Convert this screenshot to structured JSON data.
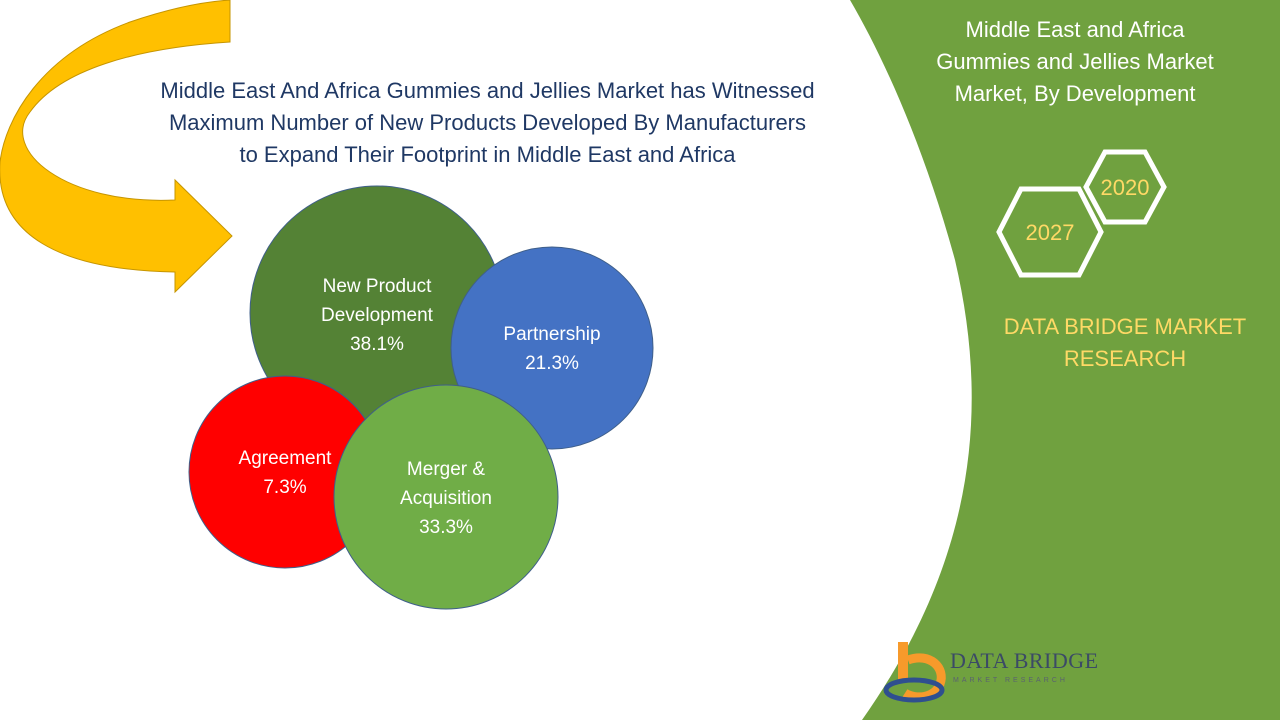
{
  "headline_lines": [
    "Middle East And Africa Gummies and Jellies Market has Witnessed",
    "Maximum Number of New Products Developed By Manufacturers",
    "to Expand Their Footprint in Middle East and Africa"
  ],
  "side_panel": {
    "title_lines": [
      "Middle East and Africa",
      "Gummies and Jellies Market",
      "Market, By Development"
    ],
    "years": [
      "2020",
      "2027"
    ],
    "brand_lines": [
      "DATA BRIDGE MARKET",
      "RESEARCH"
    ]
  },
  "logo": {
    "name": "DATA BRIDGE",
    "sub": "MARKET RESEARCH"
  },
  "colors": {
    "panel_green": "#70a13f",
    "headline_navy": "#1f3864",
    "arrow_gold": "#ffc000",
    "accent_yellow": "#ffd966"
  },
  "chart_data": {
    "type": "bubble",
    "series": [
      {
        "label_lines": [
          "New Product",
          "Development"
        ],
        "value": 38.1,
        "value_label": "38.1%",
        "color": "#548235"
      },
      {
        "label_lines": [
          "Partnership"
        ],
        "value": 21.3,
        "value_label": "21.3%",
        "color": "#4472c4"
      },
      {
        "label_lines": [
          "Agreement"
        ],
        "value": 7.3,
        "value_label": "7.3%",
        "color": "#ff0000"
      },
      {
        "label_lines": [
          "Merger &",
          "Acquisition"
        ],
        "value": 33.3,
        "value_label": "33.3%",
        "color": "#70ad47"
      }
    ]
  }
}
